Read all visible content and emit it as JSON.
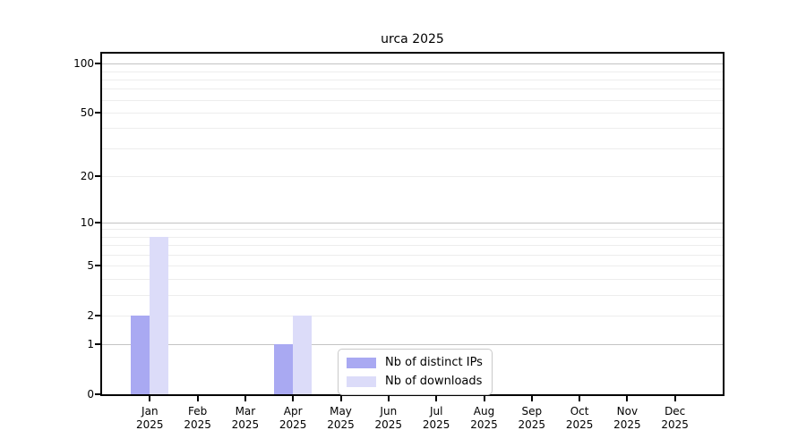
{
  "chart_data": {
    "type": "bar",
    "title": "urca 2025",
    "year": "2025",
    "categories": [
      "Jan",
      "Feb",
      "Mar",
      "Apr",
      "May",
      "Jun",
      "Jul",
      "Aug",
      "Sep",
      "Oct",
      "Nov",
      "Dec"
    ],
    "series": [
      {
        "name": "Nb of distinct IPs",
        "color": "#a9a9f2",
        "values": [
          2,
          0,
          0,
          1,
          0,
          0,
          0,
          0,
          0,
          0,
          0,
          0
        ]
      },
      {
        "name": "Nb of downloads",
        "color": "#dcdcf9",
        "values": [
          8,
          0,
          0,
          2,
          0,
          0,
          0,
          0,
          0,
          0,
          0,
          0
        ]
      }
    ],
    "y_axis": {
      "scale": "log1p",
      "ticks": [
        100,
        50,
        20,
        10,
        5,
        2,
        1,
        0
      ],
      "top_value": 115,
      "major_gridlines": [
        1,
        10,
        100
      ],
      "minor_gridlines": [
        2,
        3,
        4,
        5,
        6,
        7,
        8,
        9,
        20,
        30,
        40,
        50,
        60,
        70,
        80,
        90
      ]
    },
    "x_axis": {
      "xlabel": "",
      "tick_year": "2025"
    },
    "ylabel": "",
    "legend": {
      "position": "lower center"
    },
    "colors": {
      "major_grid": "#c3c3c3",
      "minor_grid": "#ededed",
      "axis": "#000000",
      "background": "#ffffff"
    }
  }
}
